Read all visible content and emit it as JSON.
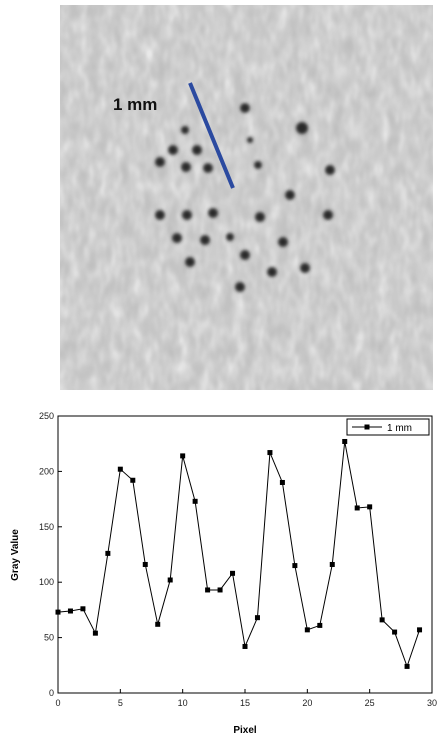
{
  "image_label": "1 mm",
  "chart_data": {
    "type": "line",
    "x_label": "Pixel",
    "y_label": "Gray Value",
    "x": [
      0,
      1,
      2,
      3,
      4,
      5,
      6,
      7,
      8,
      9,
      10,
      11,
      12,
      13,
      14,
      15,
      16,
      17,
      18,
      19,
      20,
      21,
      22,
      23,
      24,
      25,
      26,
      27,
      28,
      29
    ],
    "series": [
      {
        "name": "1 mm",
        "color": "#000000",
        "marker": "square",
        "values": [
          73,
          74,
          76,
          54,
          126,
          202,
          192,
          116,
          62,
          102,
          214,
          173,
          93,
          93,
          108,
          42,
          68,
          217,
          190,
          115,
          57,
          61,
          116,
          227,
          167,
          168,
          66,
          55,
          24,
          57
        ]
      }
    ],
    "xlim": [
      0,
      30
    ],
    "xticks": [
      0,
      5,
      10,
      15,
      20,
      25,
      30
    ],
    "ylim": [
      0,
      250
    ],
    "yticks": [
      0,
      50,
      100,
      150,
      200,
      250
    ],
    "legend": "upper right",
    "grid": false
  }
}
